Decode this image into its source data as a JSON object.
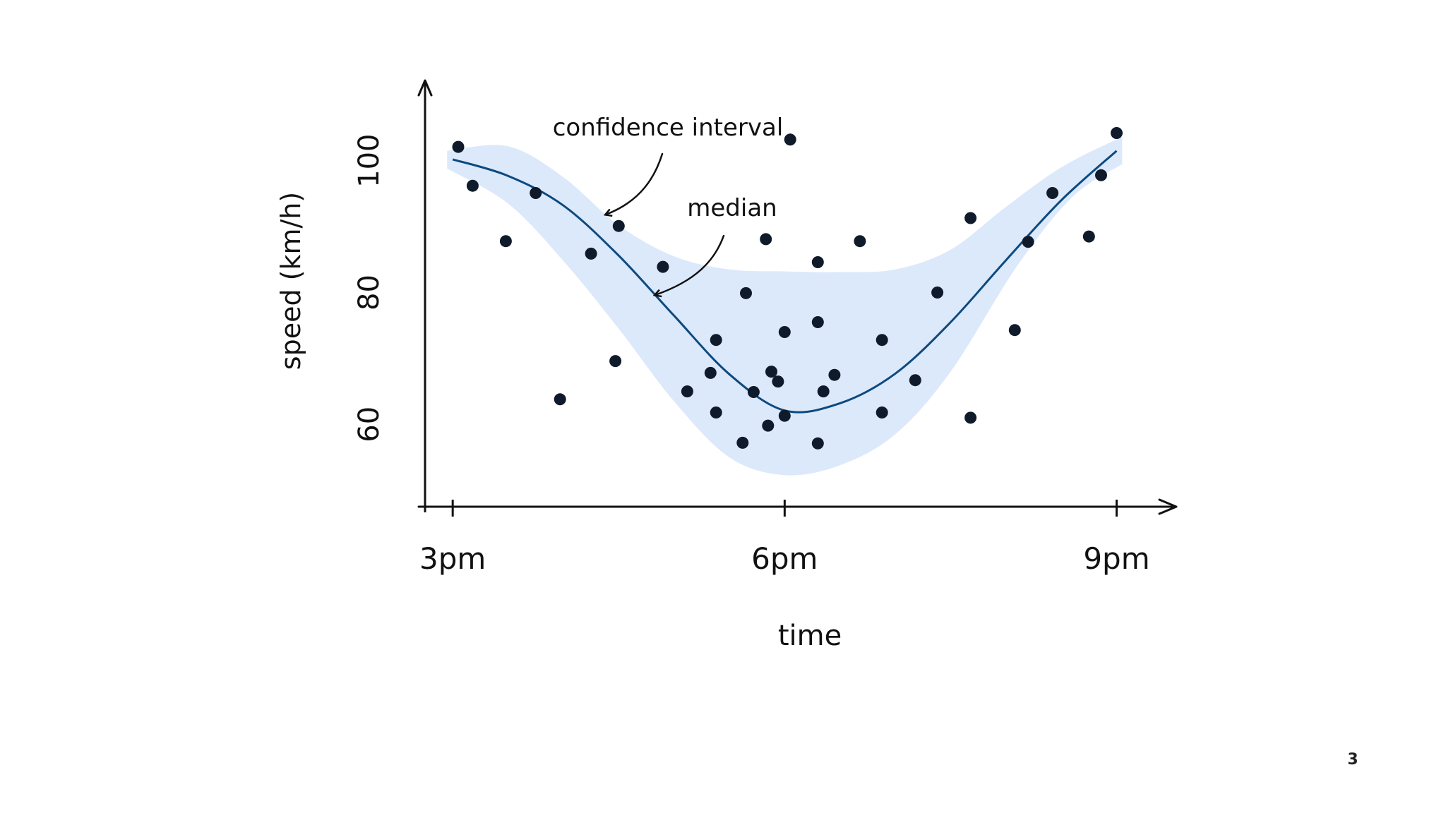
{
  "page": {
    "number": "3"
  },
  "colors": {
    "band": "#dce9fa",
    "median": "#0d4a80",
    "points": "#0f1a2a",
    "axis": "#111111"
  },
  "chart_data": {
    "type": "scatter",
    "title": "",
    "xlabel": "time",
    "ylabel": "speed (km/h)",
    "x_unit": "hours",
    "xlim": [
      14.75,
      21.45
    ],
    "ylim": [
      47.5,
      111
    ],
    "x_ticks": [
      {
        "value": 15,
        "label": "3pm"
      },
      {
        "value": 18,
        "label": "6pm"
      },
      {
        "value": 21,
        "label": "9pm"
      }
    ],
    "y_ticks": [
      {
        "value": 60,
        "label": "60"
      },
      {
        "value": 80,
        "label": "80"
      },
      {
        "value": 100,
        "label": "100"
      }
    ],
    "annotations": [
      {
        "name": "confidence-interval-annotation",
        "text": "confidence interval"
      },
      {
        "name": "median-annotation",
        "text": "median"
      }
    ],
    "median": [
      [
        15.0,
        100.2
      ],
      [
        15.5,
        97.7
      ],
      [
        16.0,
        93.2
      ],
      [
        16.5,
        85.6
      ],
      [
        17.0,
        76.5
      ],
      [
        17.5,
        67.6
      ],
      [
        18.0,
        62.1
      ],
      [
        18.5,
        63.2
      ],
      [
        19.0,
        67.7
      ],
      [
        19.5,
        75.5
      ],
      [
        20.0,
        84.9
      ],
      [
        20.5,
        94.0
      ],
      [
        21.0,
        101.5
      ]
    ],
    "confidence_interval": {
      "upper": [
        [
          14.95,
          101.5
        ],
        [
          15.5,
          102.2
        ],
        [
          16.0,
          97.5
        ],
        [
          16.5,
          90.2
        ],
        [
          17.0,
          85.5
        ],
        [
          17.5,
          83.5
        ],
        [
          18.0,
          83.2
        ],
        [
          18.5,
          83.1
        ],
        [
          19.0,
          83.5
        ],
        [
          19.5,
          86.5
        ],
        [
          20.0,
          93.0
        ],
        [
          20.5,
          99.0
        ],
        [
          21.0,
          103.2
        ],
        [
          21.05,
          103.2
        ]
      ],
      "lower": [
        [
          21.05,
          99.5
        ],
        [
          20.6,
          94.5
        ],
        [
          20.1,
          84.0
        ],
        [
          19.5,
          68.0
        ],
        [
          19.0,
          58.5
        ],
        [
          18.5,
          53.8
        ],
        [
          18.0,
          52.3
        ],
        [
          17.5,
          55.0
        ],
        [
          17.0,
          63.5
        ],
        [
          16.5,
          74.5
        ],
        [
          16.0,
          84.8
        ],
        [
          15.5,
          93.5
        ],
        [
          14.95,
          98.8
        ]
      ]
    },
    "series": [
      {
        "name": "observations",
        "points": [
          [
            15.05,
            102.1
          ],
          [
            15.18,
            96.2
          ],
          [
            15.48,
            87.8
          ],
          [
            15.75,
            95.1
          ],
          [
            15.97,
            63.8
          ],
          [
            16.25,
            85.9
          ],
          [
            16.47,
            69.6
          ],
          [
            16.5,
            90.1
          ],
          [
            16.9,
            83.9
          ],
          [
            17.12,
            65.0
          ],
          [
            17.33,
            67.8
          ],
          [
            17.38,
            61.8
          ],
          [
            17.38,
            72.8
          ],
          [
            17.62,
            57.2
          ],
          [
            17.65,
            79.9
          ],
          [
            17.72,
            64.9
          ],
          [
            17.83,
            88.1
          ],
          [
            17.85,
            59.8
          ],
          [
            17.88,
            68.0
          ],
          [
            17.94,
            66.5
          ],
          [
            18.0,
            74.0
          ],
          [
            18.0,
            61.3
          ],
          [
            18.05,
            103.2
          ],
          [
            18.3,
            57.1
          ],
          [
            18.3,
            84.6
          ],
          [
            18.3,
            75.5
          ],
          [
            18.35,
            65.0
          ],
          [
            18.45,
            67.5
          ],
          [
            18.68,
            87.8
          ],
          [
            18.88,
            61.8
          ],
          [
            18.88,
            72.8
          ],
          [
            19.18,
            66.7
          ],
          [
            19.38,
            80.0
          ],
          [
            19.68,
            61.0
          ],
          [
            19.68,
            91.3
          ],
          [
            20.08,
            74.3
          ],
          [
            20.2,
            87.7
          ],
          [
            20.42,
            95.1
          ],
          [
            20.75,
            88.5
          ],
          [
            20.86,
            97.8
          ],
          [
            21.0,
            104.2
          ]
        ]
      }
    ]
  }
}
